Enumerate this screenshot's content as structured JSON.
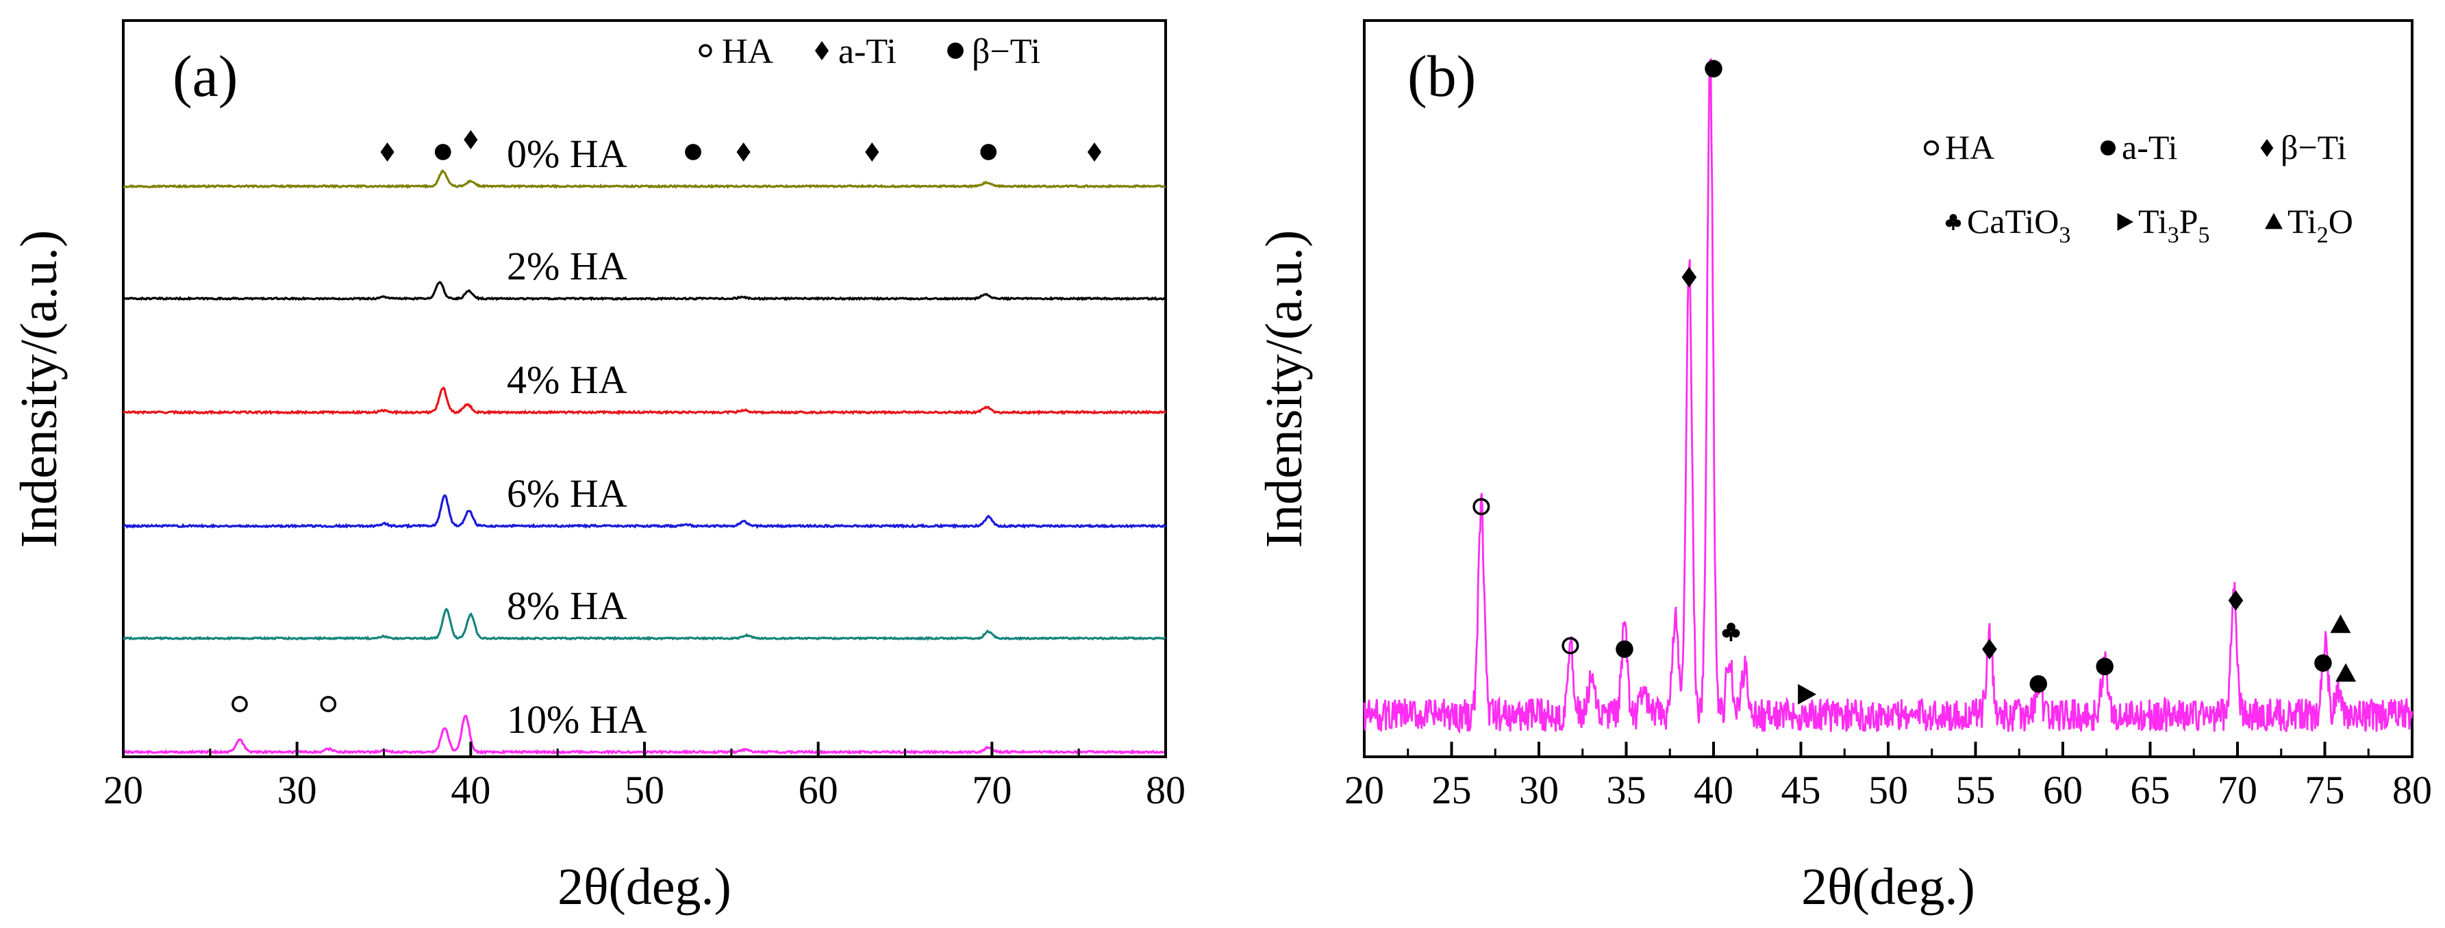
{
  "chart_data": [
    {
      "type": "line",
      "panel_label": "(a)",
      "xlabel": "2θ(deg.)",
      "ylabel": "Indensity/(a.u.)",
      "xlim": [
        20,
        80
      ],
      "xticks": [
        "20",
        "30",
        "40",
        "50",
        "60",
        "70",
        "80"
      ],
      "grid": false,
      "legend": [
        {
          "symbol": "circle-open",
          "label": "HA"
        },
        {
          "symbol": "diamond",
          "label": "a-Ti"
        },
        {
          "symbol": "circle-filled",
          "label": "β−Ti"
        }
      ],
      "series": [
        {
          "name": "0% HA",
          "label": "0% HA",
          "color": "#808000",
          "peaks": [
            [
              38.4,
              1.0
            ],
            [
              40.0,
              0.35
            ],
            [
              69.7,
              0.25
            ]
          ],
          "noise": 0.05
        },
        {
          "name": "2% HA",
          "label": "2% HA",
          "color": "#000000",
          "peaks": [
            [
              38.2,
              1.1
            ],
            [
              39.9,
              0.5
            ],
            [
              69.6,
              0.3
            ],
            [
              35.0,
              0.12
            ],
            [
              55.6,
              0.1
            ]
          ],
          "noise": 0.05
        },
        {
          "name": "4% HA",
          "label": "4% HA",
          "color": "#e8141b",
          "peaks": [
            [
              38.4,
              1.6
            ],
            [
              39.8,
              0.55
            ],
            [
              69.7,
              0.35
            ],
            [
              55.7,
              0.15
            ],
            [
              35.0,
              0.12
            ]
          ],
          "noise": 0.06
        },
        {
          "name": "6% HA",
          "label": "6% HA",
          "color": "#1a1adb",
          "peaks": [
            [
              38.5,
              2.0
            ],
            [
              39.9,
              1.0
            ],
            [
              69.8,
              0.6
            ],
            [
              55.7,
              0.3
            ],
            [
              35.0,
              0.15
            ],
            [
              52.4,
              0.1
            ]
          ],
          "noise": 0.06
        },
        {
          "name": "8% HA",
          "label": "8% HA",
          "color": "#17857c",
          "peaks": [
            [
              38.6,
              1.9
            ],
            [
              40.0,
              1.6
            ],
            [
              69.8,
              0.45
            ],
            [
              55.9,
              0.2
            ],
            [
              35.0,
              0.12
            ]
          ],
          "noise": 0.05
        },
        {
          "name": "10% HA",
          "label": "10% HA",
          "color": "#ff2cf2",
          "peaks": [
            [
              26.7,
              0.8
            ],
            [
              31.8,
              0.2
            ],
            [
              38.5,
              1.6
            ],
            [
              39.7,
              2.4
            ],
            [
              69.8,
              0.3
            ],
            [
              55.8,
              0.15
            ],
            [
              35.0,
              0.1
            ]
          ],
          "noise": 0.06
        }
      ],
      "markers": [
        {
          "series": "0% HA",
          "x": 35.2,
          "symbol": "diamond"
        },
        {
          "series": "0% HA",
          "x": 38.4,
          "symbol": "circle-filled"
        },
        {
          "series": "0% HA",
          "x": 40.0,
          "symbol": "diamond"
        },
        {
          "series": "0% HA",
          "x": 52.8,
          "symbol": "circle-filled"
        },
        {
          "series": "0% HA",
          "x": 55.7,
          "symbol": "diamond"
        },
        {
          "series": "0% HA",
          "x": 63.1,
          "symbol": "diamond"
        },
        {
          "series": "0% HA",
          "x": 69.8,
          "symbol": "circle-filled"
        },
        {
          "series": "0% HA",
          "x": 75.9,
          "symbol": "diamond"
        },
        {
          "series": "10% HA",
          "x": 26.7,
          "symbol": "circle-open"
        },
        {
          "series": "10% HA",
          "x": 31.8,
          "symbol": "circle-open"
        }
      ]
    },
    {
      "type": "line",
      "panel_label": "(b)",
      "xlabel": "2θ(deg.)",
      "ylabel": "Indensity/(a.u.)",
      "xlim": [
        20,
        80
      ],
      "ylim": [
        0,
        100
      ],
      "xticks": [
        "20",
        "25",
        "30",
        "35",
        "40",
        "45",
        "50",
        "55",
        "60",
        "65",
        "70",
        "75",
        "80"
      ],
      "grid": false,
      "legend": [
        {
          "symbol": "circle-open",
          "label": "HA"
        },
        {
          "symbol": "circle-filled",
          "label": "a-Ti"
        },
        {
          "symbol": "diamond",
          "label": "β−Ti"
        },
        {
          "symbol": "club",
          "label": "CaTiO",
          "sub": "3"
        },
        {
          "symbol": "triangle-right",
          "label": "Ti",
          "sub": "3",
          "label2": "P",
          "sub2": "5"
        },
        {
          "symbol": "triangle-up",
          "label": "Ti",
          "sub": "2",
          "label2": "O"
        }
      ],
      "series": [
        {
          "name": "HA coating",
          "color": "#ff2cf2",
          "baseline": 5,
          "peaks": [
            [
              26.7,
              30
            ],
            [
              31.8,
              10
            ],
            [
              33.0,
              5
            ],
            [
              34.9,
              12
            ],
            [
              36.0,
              4
            ],
            [
              37.8,
              14
            ],
            [
              38.6,
              65
            ],
            [
              39.8,
              95
            ],
            [
              40.9,
              8
            ],
            [
              41.8,
              7
            ],
            [
              55.8,
              12
            ],
            [
              58.6,
              5
            ],
            [
              62.4,
              8
            ],
            [
              69.8,
              18
            ],
            [
              75.0,
              10
            ],
            [
              75.8,
              4
            ]
          ],
          "noise": 1.5
        }
      ],
      "markers": [
        {
          "x": 26.7,
          "y": 35,
          "symbol": "circle-open"
        },
        {
          "x": 31.8,
          "y": 15,
          "symbol": "circle-open"
        },
        {
          "x": 34.9,
          "y": 14.5,
          "symbol": "circle-filled"
        },
        {
          "x": 38.6,
          "y": 68,
          "symbol": "diamond"
        },
        {
          "x": 40.0,
          "y": 98,
          "symbol": "circle-filled"
        },
        {
          "x": 41.0,
          "y": 17,
          "symbol": "club"
        },
        {
          "x": 45.3,
          "y": 8,
          "symbol": "triangle-right"
        },
        {
          "x": 55.8,
          "y": 14.5,
          "symbol": "diamond"
        },
        {
          "x": 58.6,
          "y": 9.5,
          "symbol": "circle-filled"
        },
        {
          "x": 62.4,
          "y": 12,
          "symbol": "circle-filled"
        },
        {
          "x": 69.9,
          "y": 21.5,
          "symbol": "diamond"
        },
        {
          "x": 74.9,
          "y": 12.5,
          "symbol": "circle-filled"
        },
        {
          "x": 75.9,
          "y": 18,
          "symbol": "triangle-up"
        },
        {
          "x": 76.2,
          "y": 11,
          "symbol": "triangle-up"
        }
      ]
    }
  ]
}
